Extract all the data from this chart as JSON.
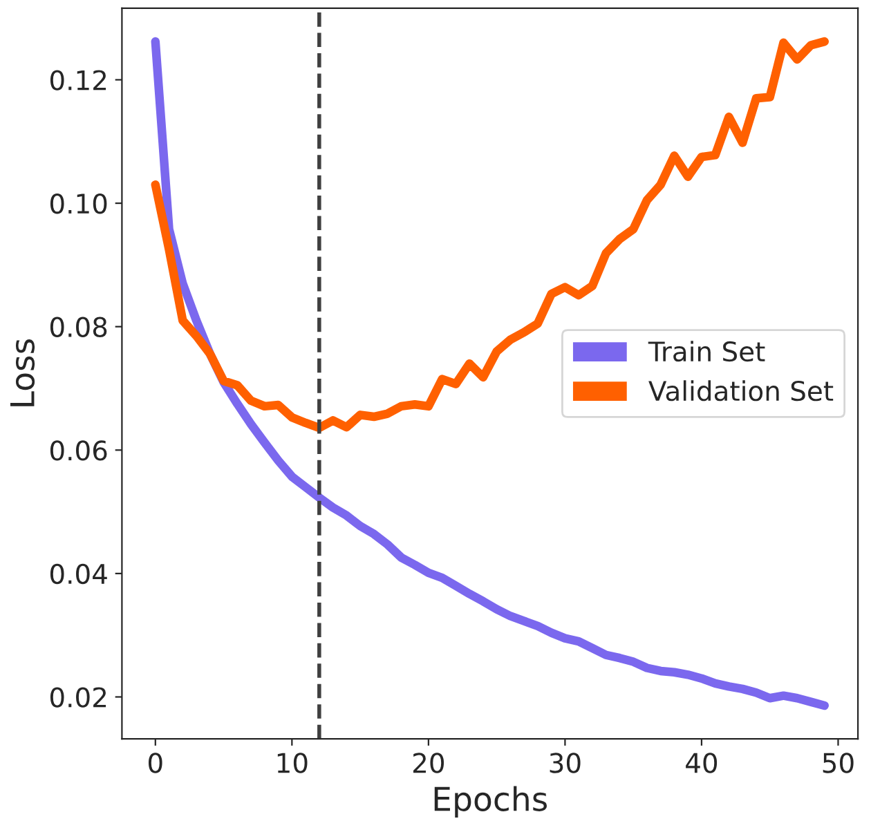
{
  "chart_data": {
    "type": "line",
    "xlabel": "Epochs",
    "ylabel": "Loss",
    "x": [
      0,
      1,
      2,
      3,
      4,
      5,
      6,
      7,
      8,
      9,
      10,
      11,
      12,
      13,
      14,
      15,
      16,
      17,
      18,
      19,
      20,
      21,
      22,
      23,
      24,
      25,
      26,
      27,
      28,
      29,
      30,
      31,
      32,
      33,
      34,
      35,
      36,
      37,
      38,
      39,
      40,
      41,
      42,
      43,
      44,
      45,
      46,
      47,
      48,
      49
    ],
    "series": [
      {
        "name": "Train Set",
        "color": "#7b68ee",
        "values": [
          0.1262,
          0.0958,
          0.087,
          0.081,
          0.0756,
          0.071,
          0.0675,
          0.0642,
          0.0612,
          0.0583,
          0.0557,
          0.054,
          0.0523,
          0.0507,
          0.0494,
          0.0477,
          0.0464,
          0.0447,
          0.0426,
          0.0414,
          0.0401,
          0.0393,
          0.038,
          0.0367,
          0.0355,
          0.0342,
          0.0331,
          0.0323,
          0.0315,
          0.0304,
          0.0295,
          0.029,
          0.0279,
          0.0268,
          0.0263,
          0.0257,
          0.0247,
          0.0242,
          0.024,
          0.0236,
          0.023,
          0.0222,
          0.0217,
          0.0213,
          0.0207,
          0.0198,
          0.0202,
          0.0198,
          0.0192,
          0.0186
        ]
      },
      {
        "name": "Validation Set",
        "color": "#ff6000",
        "values": [
          0.103,
          0.0925,
          0.081,
          0.0785,
          0.0756,
          0.0712,
          0.0705,
          0.068,
          0.0671,
          0.0673,
          0.0653,
          0.0644,
          0.0636,
          0.0648,
          0.0637,
          0.0657,
          0.0654,
          0.0659,
          0.0671,
          0.0674,
          0.0671,
          0.0715,
          0.0707,
          0.074,
          0.0718,
          0.076,
          0.0779,
          0.0791,
          0.0805,
          0.0853,
          0.0864,
          0.0851,
          0.0866,
          0.0919,
          0.0942,
          0.0958,
          0.1005,
          0.103,
          0.1077,
          0.1043,
          0.1075,
          0.1078,
          0.114,
          0.1098,
          0.117,
          0.1172,
          0.126,
          0.1233,
          0.1256,
          0.1262
        ]
      }
    ],
    "xlim": [
      -2.45,
      51.45
    ],
    "xticks": [
      0,
      10,
      20,
      30,
      40,
      50
    ],
    "ylim": [
      0.0132,
      0.1316
    ],
    "yticks": [
      {
        "value": 0.02,
        "label": "0.02"
      },
      {
        "value": 0.04,
        "label": "0.04"
      },
      {
        "value": 0.06,
        "label": "0.06"
      },
      {
        "value": 0.08,
        "label": "0.08"
      },
      {
        "value": 0.1,
        "label": "0.10"
      },
      {
        "value": 0.12,
        "label": "0.12"
      }
    ],
    "ref_lines": [
      {
        "axis": "x",
        "value": 12,
        "color": "#404040",
        "line_style": "dashed"
      }
    ],
    "legend": "right",
    "grid": false,
    "marker": "none",
    "line_style": "solid"
  }
}
